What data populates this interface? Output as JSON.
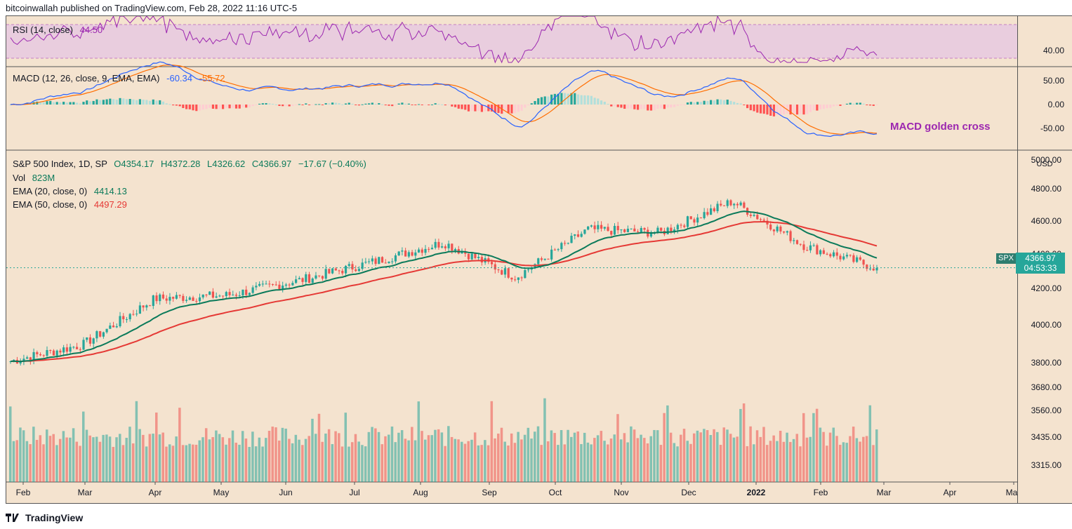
{
  "header": {
    "text": "bitcoinwallah published on TradingView.com, Feb 28, 2022 11:16 UTC-5"
  },
  "footer": {
    "text": "TradingView",
    "logo": "tradingview-logo-icon"
  },
  "rsi": {
    "label": "RSI (14, close)",
    "value": "44.50",
    "color": "#9c27b0",
    "band_color": "#e1bee7",
    "tick": "40.00"
  },
  "macd": {
    "label": "MACD (12, 26, close, 9, EMA, EMA)",
    "macd_value": "-60.34",
    "signal_value": "-55.72",
    "macd_color": "#2962ff",
    "signal_color": "#ff6d00",
    "ticks": [
      "50.00",
      "0.00",
      "-50.00"
    ],
    "annotation": "MACD golden cross"
  },
  "main": {
    "title": "S&P 500 Index, 1D, SP",
    "open": "O4354.17",
    "high": "H4372.28",
    "low": "L4326.62",
    "close": "C4366.97",
    "change": "−17.67 (−0.40%)",
    "vol_label": "Vol",
    "vol_value": "823M",
    "ema20_label": "EMA (20, close, 0)",
    "ema20_value": "4414.13",
    "ema20_color": "#0b7a5a",
    "ema50_label": "EMA (50, close, 0)",
    "ema50_value": "4497.29",
    "ema50_color": "#e53935",
    "up_color": "#26a69a",
    "down_color": "#ef5350",
    "currency": "USD",
    "price_ticks": [
      "5000.00",
      "4800.00",
      "4600.00",
      "4400.00",
      "4200.00",
      "4000.00",
      "3800.00",
      "3680.00",
      "3560.00",
      "3435.00",
      "3315.00"
    ],
    "symbol": "SPX",
    "last_price": "4366.97",
    "countdown": "04:53:33"
  },
  "x_axis": {
    "labels": [
      "Feb",
      "Mar",
      "Apr",
      "May",
      "Jun",
      "Jul",
      "Aug",
      "Sep",
      "Oct",
      "Nov",
      "Dec",
      "2022",
      "Feb",
      "Mar",
      "Apr",
      "May"
    ]
  },
  "chart_data": {
    "type": "candlestick",
    "title": "S&P 500 Index, 1D, SP",
    "period": "Feb 2021 – Feb 28, 2022",
    "closes_monthly": [
      {
        "x": "Feb 2021",
        "close": 3800
      },
      {
        "x": "Mar 2021",
        "close": 3900
      },
      {
        "x": "Apr 2021",
        "close": 4180
      },
      {
        "x": "May 2021",
        "close": 4200
      },
      {
        "x": "Jun 2021",
        "close": 4290
      },
      {
        "x": "Jul 2021",
        "close": 4400
      },
      {
        "x": "Aug 2021",
        "close": 4520
      },
      {
        "x": "Sep 2021",
        "close": 4310
      },
      {
        "x": "Oct 2021",
        "close": 4600
      },
      {
        "x": "Nov 2021",
        "close": 4580
      },
      {
        "x": "Dec 2021",
        "close": 4770
      },
      {
        "x": "Jan 2022",
        "close": 4500
      },
      {
        "x": "Feb 2022",
        "close": 4367
      }
    ],
    "ylim": [
      3680,
      5000
    ]
  }
}
